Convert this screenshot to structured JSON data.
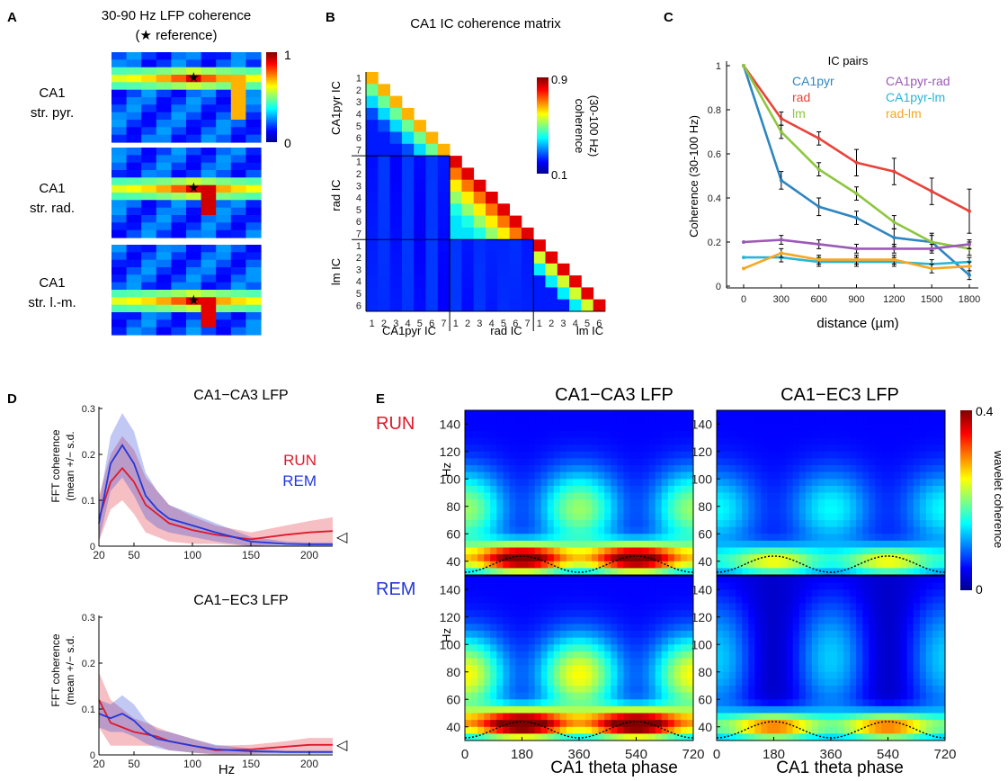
{
  "panels": {
    "A": {
      "letter": "A",
      "title_line1": "30-90 Hz LFP coherence",
      "title_line2": "(★ reference)",
      "rows": [
        {
          "line1": "CA1",
          "line2": "str. pyr."
        },
        {
          "line1": "CA1",
          "line2": "str. rad."
        },
        {
          "line1": "CA1",
          "line2": "str. l.-m."
        }
      ],
      "colorbar": {
        "max": "1",
        "min": "0"
      },
      "star": "★"
    },
    "B": {
      "letter": "B",
      "title": "CA1 IC coherence matrix",
      "colorbar": {
        "max": "0.9",
        "min": "0.1",
        "label_line1": "coherence",
        "label_line2": "(30-100 Hz)"
      },
      "groups": [
        {
          "name": "CA1pyr IC",
          "ticks": [
            "1",
            "2",
            "3",
            "4",
            "5",
            "6",
            "7"
          ]
        },
        {
          "name": "rad IC",
          "ticks": [
            "1",
            "2",
            "3",
            "4",
            "5",
            "6",
            "7"
          ]
        },
        {
          "name": "lm IC",
          "ticks": [
            "1",
            "2",
            "3",
            "4",
            "5",
            "6"
          ]
        }
      ]
    },
    "C": {
      "letter": "C",
      "legend_title": "IC pairs",
      "ylabel": "Coherence (30-100 Hz)",
      "xlabel": "distance (µm)",
      "xticks": [
        "0",
        "300",
        "600",
        "900",
        "1200",
        "1500",
        "1800"
      ],
      "yticks": [
        "0",
        "0.2",
        "0.4",
        "0.6",
        "0.8",
        "1"
      ]
    },
    "D": {
      "letter": "D",
      "titles": [
        "CA1−CA3 LFP",
        "CA1−EC3 LFP"
      ],
      "ylabel_line1": "FFT coherence",
      "ylabel_line2": "(mean +/− s.d.",
      "xlabel": "Hz",
      "xticks": [
        "20",
        "50",
        "100",
        "150",
        "200"
      ],
      "yticks": [
        "0",
        "0.1",
        "0.2",
        "0.3"
      ],
      "legend": [
        "RUN",
        "REM"
      ],
      "marker": "◁"
    },
    "E": {
      "letter": "E",
      "col_titles": [
        "CA1−CA3 LFP",
        "CA1−EC3 LFP"
      ],
      "row_labels": [
        "RUN",
        "REM"
      ],
      "ylabel": "Hz",
      "xlabel": "CA1 theta phase",
      "yticks": [
        "40",
        "60",
        "80",
        "100",
        "120",
        "140"
      ],
      "xticks": [
        "0",
        "180",
        "360",
        "540",
        "720"
      ],
      "colorbar": {
        "max": "0.4",
        "min": "0",
        "label": "wavelet coherence"
      }
    }
  },
  "colors": {
    "run": "#e0192a",
    "rem": "#2238d8",
    "ca1pyr": "#2e86c1",
    "rad": "#e8433a",
    "lm": "#8dc63f",
    "ca1pyr_rad": "#9b59b6",
    "ca1pyr_lm": "#29b6d6",
    "rad_lm": "#f5a623"
  },
  "chart_data": [
    {
      "type": "line",
      "panel": "C",
      "legend_title": "IC pairs",
      "xlabel": "distance (µm)",
      "ylabel": "Coherence (30-100 Hz)",
      "x": [
        0,
        300,
        600,
        900,
        1200,
        1500,
        1800
      ],
      "ylim": [
        0,
        1
      ],
      "series": [
        {
          "name": "CA1pyr",
          "color": "#2e86c1",
          "values": [
            1.0,
            0.48,
            0.36,
            0.31,
            0.22,
            0.2,
            0.05
          ],
          "err": [
            0,
            0.04,
            0.04,
            0.03,
            0.04,
            0.04,
            0.02
          ]
        },
        {
          "name": "rad",
          "color": "#e8433a",
          "values": [
            1.0,
            0.76,
            0.67,
            0.56,
            0.52,
            0.43,
            0.34
          ],
          "err": [
            0,
            0.03,
            0.03,
            0.06,
            0.06,
            0.06,
            0.1
          ]
        },
        {
          "name": "lm",
          "color": "#8dc63f",
          "values": [
            1.0,
            0.7,
            0.53,
            0.42,
            0.29,
            0.2,
            0.17
          ],
          "err": [
            0,
            0.03,
            0.03,
            0.03,
            0.03,
            0.03,
            0.03
          ]
        },
        {
          "name": "CA1pyr-rad",
          "color": "#9b59b6",
          "values": [
            0.2,
            0.21,
            0.19,
            0.17,
            0.17,
            0.17,
            0.19
          ],
          "err": [
            0,
            0.02,
            0.02,
            0.02,
            0.02,
            0.02,
            0.02
          ]
        },
        {
          "name": "CA1pyr-lm",
          "color": "#29b6d6",
          "values": [
            0.13,
            0.13,
            0.11,
            0.11,
            0.11,
            0.1,
            0.11
          ],
          "err": [
            0,
            0.02,
            0.02,
            0.02,
            0.02,
            0.02,
            0.02
          ]
        },
        {
          "name": "rad-lm",
          "color": "#f5a623",
          "values": [
            0.08,
            0.15,
            0.12,
            0.12,
            0.12,
            0.08,
            0.09
          ],
          "err": [
            0,
            0.02,
            0.02,
            0.02,
            0.02,
            0.02,
            0.02
          ]
        }
      ]
    },
    {
      "type": "line",
      "panel": "D",
      "title": "CA1−CA3 LFP",
      "xlabel": "Hz",
      "ylabel": "FFT coherence (mean +/− s.d.",
      "x": [
        20,
        30,
        40,
        50,
        60,
        70,
        80,
        100,
        120,
        150,
        180,
        200,
        220
      ],
      "xlim": [
        20,
        220
      ],
      "ylim": [
        0,
        0.3
      ],
      "series": [
        {
          "name": "RUN",
          "color": "#e0192a",
          "values": [
            0.06,
            0.14,
            0.17,
            0.14,
            0.09,
            0.07,
            0.05,
            0.035,
            0.025,
            0.015,
            0.025,
            0.03,
            0.033
          ],
          "sd": [
            0.05,
            0.06,
            0.07,
            0.07,
            0.06,
            0.05,
            0.04,
            0.03,
            0.02,
            0.015,
            0.02,
            0.025,
            0.03
          ]
        },
        {
          "name": "REM",
          "color": "#2238d8",
          "values": [
            0.05,
            0.18,
            0.22,
            0.18,
            0.11,
            0.08,
            0.06,
            0.045,
            0.03,
            0.01,
            0.005,
            0.004,
            0.004
          ],
          "sd": [
            0.04,
            0.06,
            0.07,
            0.07,
            0.05,
            0.04,
            0.03,
            0.025,
            0.02,
            0.01,
            0.005,
            0.004,
            0.004
          ]
        }
      ]
    },
    {
      "type": "line",
      "panel": "D",
      "title": "CA1−EC3 LFP",
      "xlabel": "Hz",
      "ylabel": "FFT coherence (mean +/− s.d.",
      "x": [
        20,
        30,
        40,
        50,
        60,
        70,
        80,
        100,
        120,
        150,
        180,
        200,
        220
      ],
      "xlim": [
        20,
        220
      ],
      "ylim": [
        0,
        0.3
      ],
      "series": [
        {
          "name": "RUN",
          "color": "#e0192a",
          "values": [
            0.12,
            0.07,
            0.06,
            0.05,
            0.045,
            0.04,
            0.03,
            0.02,
            0.01,
            0.012,
            0.018,
            0.022,
            0.022
          ],
          "sd": [
            0.06,
            0.05,
            0.04,
            0.03,
            0.025,
            0.02,
            0.02,
            0.015,
            0.01,
            0.01,
            0.012,
            0.015,
            0.015
          ]
        },
        {
          "name": "REM",
          "color": "#2238d8",
          "values": [
            0.09,
            0.08,
            0.09,
            0.075,
            0.05,
            0.035,
            0.03,
            0.02,
            0.012,
            0.008,
            0.006,
            0.006,
            0.006
          ],
          "sd": [
            0.03,
            0.03,
            0.04,
            0.035,
            0.025,
            0.02,
            0.02,
            0.015,
            0.01,
            0.006,
            0.004,
            0.004,
            0.004
          ]
        }
      ]
    },
    {
      "type": "heatmap",
      "panel": "E",
      "x_range": [
        0,
        720
      ],
      "y_range": [
        30,
        150
      ],
      "colorbar_range": [
        0,
        0.4
      ],
      "maps": [
        {
          "row": "RUN",
          "col": "CA1−CA3 LFP",
          "gamma_peak": 0.38,
          "gamma_freq_hz": 42,
          "mid_level": 0.16
        },
        {
          "row": "RUN",
          "col": "CA1−EC3 LFP",
          "gamma_peak": 0.2,
          "gamma_freq_hz": 40,
          "mid_level": 0.1
        },
        {
          "row": "REM",
          "col": "CA1−CA3 LFP",
          "gamma_peak": 0.4,
          "gamma_freq_hz": 42,
          "mid_level": 0.2
        },
        {
          "row": "REM",
          "col": "CA1−EC3 LFP",
          "gamma_peak": 0.28,
          "gamma_freq_hz": 40,
          "mid_level": 0.1
        }
      ]
    }
  ]
}
